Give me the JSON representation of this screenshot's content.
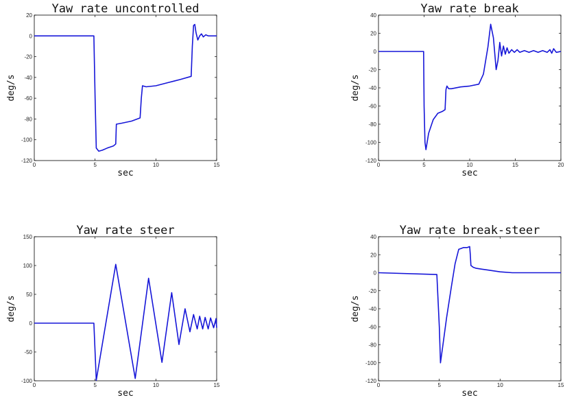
{
  "chart_data": [
    {
      "type": "line",
      "title": "Yaw rate uncontrolled",
      "xlabel": "sec",
      "ylabel": "deg/s",
      "xlim": [
        0,
        15
      ],
      "ylim": [
        -120,
        20
      ],
      "xticks": [
        0,
        5,
        10,
        15
      ],
      "yticks": [
        -120,
        -100,
        -80,
        -60,
        -40,
        -20,
        0,
        20
      ],
      "series": [
        {
          "x": [
            0,
            4.9,
            5.0,
            5.1,
            5.3,
            5.6,
            6.0,
            6.5,
            6.7,
            6.75,
            7.2,
            8.0,
            8.7,
            8.8,
            8.9,
            9.2,
            10.0,
            11.0,
            12.0,
            12.9,
            13.0,
            13.1,
            13.2,
            13.3,
            13.45,
            13.6,
            13.75,
            13.9,
            14.1,
            14.3,
            15.0
          ],
          "y": [
            0,
            0,
            -60,
            -108,
            -111,
            -110,
            -108,
            -106,
            -104,
            -85,
            -84,
            -82,
            -79,
            -60,
            -48,
            -49,
            -48,
            -45,
            -42,
            -39,
            -10,
            10,
            11,
            3,
            -4,
            0,
            2,
            -1,
            1,
            0,
            0
          ]
        }
      ]
    },
    {
      "type": "line",
      "title": "Yaw rate break",
      "xlabel": "sec",
      "ylabel": "deg/s",
      "xlim": [
        0,
        20
      ],
      "ylim": [
        -120,
        40
      ],
      "xticks": [
        0,
        5,
        10,
        15,
        20
      ],
      "yticks": [
        -120,
        -100,
        -80,
        -60,
        -40,
        -20,
        0,
        20,
        40
      ],
      "series": [
        {
          "x": [
            0,
            4.95,
            5.0,
            5.1,
            5.2,
            5.5,
            6.0,
            6.5,
            7.0,
            7.3,
            7.4,
            7.5,
            7.7,
            8.0,
            9.0,
            10.0,
            11.0,
            11.5,
            12.0,
            12.3,
            12.6,
            12.9,
            13.1,
            13.3,
            13.5,
            13.7,
            13.9,
            14.1,
            14.3,
            14.6,
            14.9,
            15.2,
            15.5,
            16.0,
            16.5,
            17.0,
            17.5,
            18.0,
            18.5,
            18.8,
            19.0,
            19.2,
            19.5,
            20.0
          ],
          "y": [
            0,
            0,
            -60,
            -100,
            -108,
            -90,
            -75,
            -68,
            -66,
            -64,
            -42,
            -38,
            -41,
            -41,
            -39,
            -38,
            -36,
            -25,
            5,
            30,
            15,
            -20,
            -10,
            10,
            -5,
            6,
            -3,
            4,
            -2,
            2,
            -1,
            2,
            -1,
            1,
            -1,
            1,
            -1,
            1,
            -1,
            2,
            -2,
            3,
            -1,
            0
          ]
        }
      ]
    },
    {
      "type": "line",
      "title": "Yaw rate steer",
      "xlabel": "sec",
      "ylabel": "deg/s",
      "xlim": [
        0,
        15
      ],
      "ylim": [
        -100,
        150
      ],
      "xticks": [
        0,
        5,
        10,
        15
      ],
      "yticks": [
        -100,
        -50,
        0,
        50,
        100,
        150
      ],
      "series": [
        {
          "x": [
            0,
            4.9,
            5.1,
            6.7,
            8.3,
            9.4,
            10.5,
            11.3,
            11.9,
            12.4,
            12.8,
            13.1,
            13.4,
            13.6,
            13.85,
            14.05,
            14.3,
            14.5,
            14.75,
            14.95,
            15.0
          ],
          "y": [
            0,
            0,
            -99,
            102,
            -96,
            78,
            -68,
            53,
            -37,
            25,
            -15,
            15,
            -10,
            12,
            -10,
            10,
            -10,
            9,
            -8,
            8,
            -8
          ]
        }
      ]
    },
    {
      "type": "line",
      "title": "Yaw rate break-steer",
      "xlabel": "sec",
      "ylabel": "deg/s",
      "xlim": [
        0,
        15
      ],
      "ylim": [
        -120,
        40
      ],
      "xticks": [
        0,
        5,
        10,
        15
      ],
      "yticks": [
        -120,
        -100,
        -80,
        -60,
        -40,
        -20,
        0,
        20,
        40
      ],
      "series": [
        {
          "x": [
            0,
            4.8,
            5.0,
            5.1,
            5.3,
            5.6,
            6.0,
            6.3,
            6.6,
            6.8,
            7.0,
            7.3,
            7.5,
            7.55,
            7.6,
            7.7,
            7.8,
            8.0,
            8.5,
            9.0,
            10.0,
            11.0,
            12.0,
            15.0
          ],
          "y": [
            0,
            -2,
            -60,
            -100,
            -80,
            -50,
            -15,
            10,
            26,
            27,
            28,
            28,
            29,
            20,
            8,
            7,
            6,
            5,
            4,
            3,
            1,
            0,
            0,
            0
          ]
        }
      ]
    }
  ]
}
